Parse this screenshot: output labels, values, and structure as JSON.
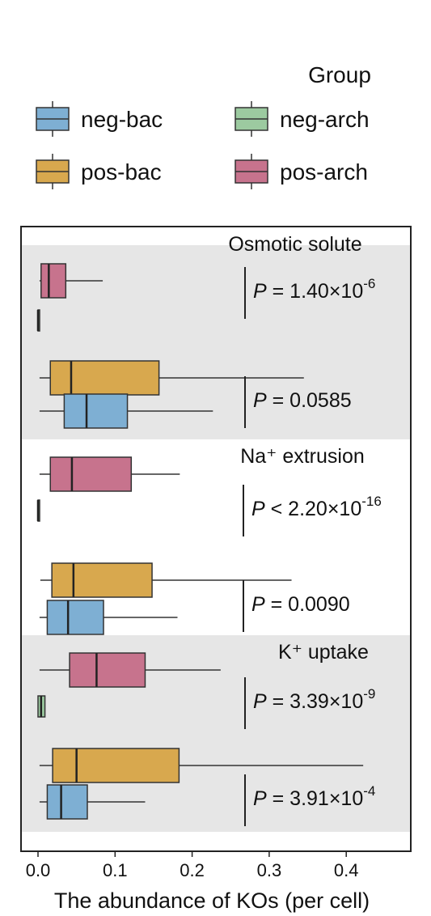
{
  "chart_data": {
    "type": "boxplot",
    "legend": {
      "title": "Group",
      "position": "top",
      "entries": [
        {
          "name": "neg-bac",
          "color": "#7eafd3"
        },
        {
          "name": "neg-arch",
          "color": "#9ccaa0"
        },
        {
          "name": "pos-bac",
          "color": "#d8a84e"
        },
        {
          "name": "pos-arch",
          "color": "#c7738d"
        }
      ]
    },
    "xlabel": "The abundance of KOs (per cell)",
    "xlim": [
      -0.02,
      0.48
    ],
    "xticks": [
      0.0,
      0.1,
      0.2,
      0.3,
      0.4
    ],
    "xtick_labels": [
      "0.0",
      "0.1",
      "0.2",
      "0.3",
      "0.4"
    ],
    "panels": [
      {
        "title": "Osmotic solute",
        "shaded": true,
        "boxes": [
          {
            "group": "pos-arch",
            "whisker_low": 0.002,
            "q1": 0.004,
            "median": 0.014,
            "q3": 0.036,
            "whisker_high": 0.084
          },
          {
            "group": "neg-arch",
            "whisker_low": 0.0,
            "q1": 0.0,
            "median": 0.0,
            "q3": 0.0,
            "whisker_high": 0.0
          },
          {
            "group": "pos-bac",
            "whisker_low": 0.002,
            "q1": 0.016,
            "median": 0.043,
            "q3": 0.157,
            "whisker_high": 0.345
          },
          {
            "group": "neg-bac",
            "whisker_low": 0.002,
            "q1": 0.034,
            "median": 0.063,
            "q3": 0.116,
            "whisker_high": 0.227
          }
        ],
        "pvalues": [
          {
            "prefix": "P = ",
            "value": "1.40×10",
            "exponent": "-6"
          },
          {
            "prefix": "P = ",
            "value": "0.0585",
            "exponent": ""
          }
        ]
      },
      {
        "title": "Na⁺ extrusion",
        "shaded": false,
        "boxes": [
          {
            "group": "pos-arch",
            "whisker_low": 0.002,
            "q1": 0.016,
            "median": 0.044,
            "q3": 0.121,
            "whisker_high": 0.184
          },
          {
            "group": "neg-arch",
            "whisker_low": 0.0,
            "q1": 0.0,
            "median": 0.0,
            "q3": 0.0,
            "whisker_high": 0.0
          },
          {
            "group": "pos-bac",
            "whisker_low": 0.003,
            "q1": 0.018,
            "median": 0.046,
            "q3": 0.148,
            "whisker_high": 0.329
          },
          {
            "group": "neg-bac",
            "whisker_low": 0.002,
            "q1": 0.012,
            "median": 0.039,
            "q3": 0.085,
            "whisker_high": 0.181
          }
        ],
        "pvalues": [
          {
            "prefix": "P < ",
            "value": "2.20×10",
            "exponent": "-16"
          },
          {
            "prefix": "P = ",
            "value": "0.0090",
            "exponent": ""
          }
        ]
      },
      {
        "title": "K⁺ uptake",
        "shaded": true,
        "boxes": [
          {
            "group": "pos-arch",
            "whisker_low": 0.002,
            "q1": 0.041,
            "median": 0.076,
            "q3": 0.139,
            "whisker_high": 0.237
          },
          {
            "group": "neg-arch",
            "whisker_low": 0.0,
            "q1": 0.0,
            "median": 0.004,
            "q3": 0.009,
            "whisker_high": 0.009
          },
          {
            "group": "pos-bac",
            "whisker_low": 0.002,
            "q1": 0.019,
            "median": 0.05,
            "q3": 0.183,
            "whisker_high": 0.422
          },
          {
            "group": "neg-bac",
            "whisker_low": 0.002,
            "q1": 0.012,
            "median": 0.03,
            "q3": 0.064,
            "whisker_high": 0.139
          }
        ],
        "pvalues": [
          {
            "prefix": "P = ",
            "value": "3.39×10",
            "exponent": "-9"
          },
          {
            "prefix": "P = ",
            "value": "3.91×10",
            "exponent": "-4"
          }
        ]
      }
    ]
  }
}
